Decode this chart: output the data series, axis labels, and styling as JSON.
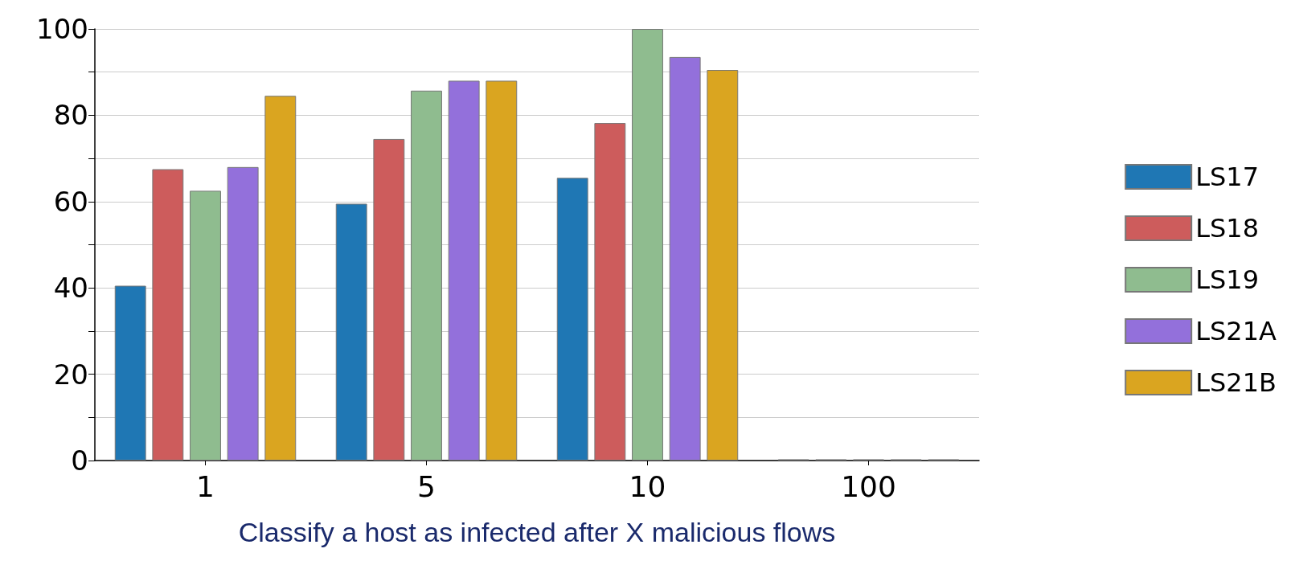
{
  "chart_data": {
    "type": "bar",
    "xlabel": "Classify a host as infected after X malicious flows",
    "categories": [
      "1",
      "5",
      "10",
      "100"
    ],
    "series": [
      {
        "name": "LS17",
        "color": "#1f77b4",
        "values": [
          40.5,
          59.5,
          65.5,
          0.3
        ]
      },
      {
        "name": "LS18",
        "color": "#cd5c5c",
        "values": [
          67.5,
          74.5,
          78.2,
          0.3
        ]
      },
      {
        "name": "LS19",
        "color": "#8fbc8f",
        "values": [
          62.5,
          85.7,
          100,
          0.3
        ]
      },
      {
        "name": "LS21A",
        "color": "#9370db",
        "values": [
          68,
          88,
          93.5,
          0.3
        ]
      },
      {
        "name": "LS21B",
        "color": "#daa520",
        "values": [
          84.5,
          88,
          90.5,
          0.3
        ]
      }
    ],
    "ylim": [
      0,
      100
    ],
    "yticks": [
      0,
      {
        "value": 10,
        "label": null
      },
      20,
      {
        "value": 30,
        "label": null
      },
      40,
      {
        "value": 50,
        "label": null
      },
      60,
      {
        "value": 70,
        "label": null
      },
      80,
      {
        "value": 90,
        "label": null
      },
      100
    ],
    "grid": "y",
    "legend": "right"
  }
}
